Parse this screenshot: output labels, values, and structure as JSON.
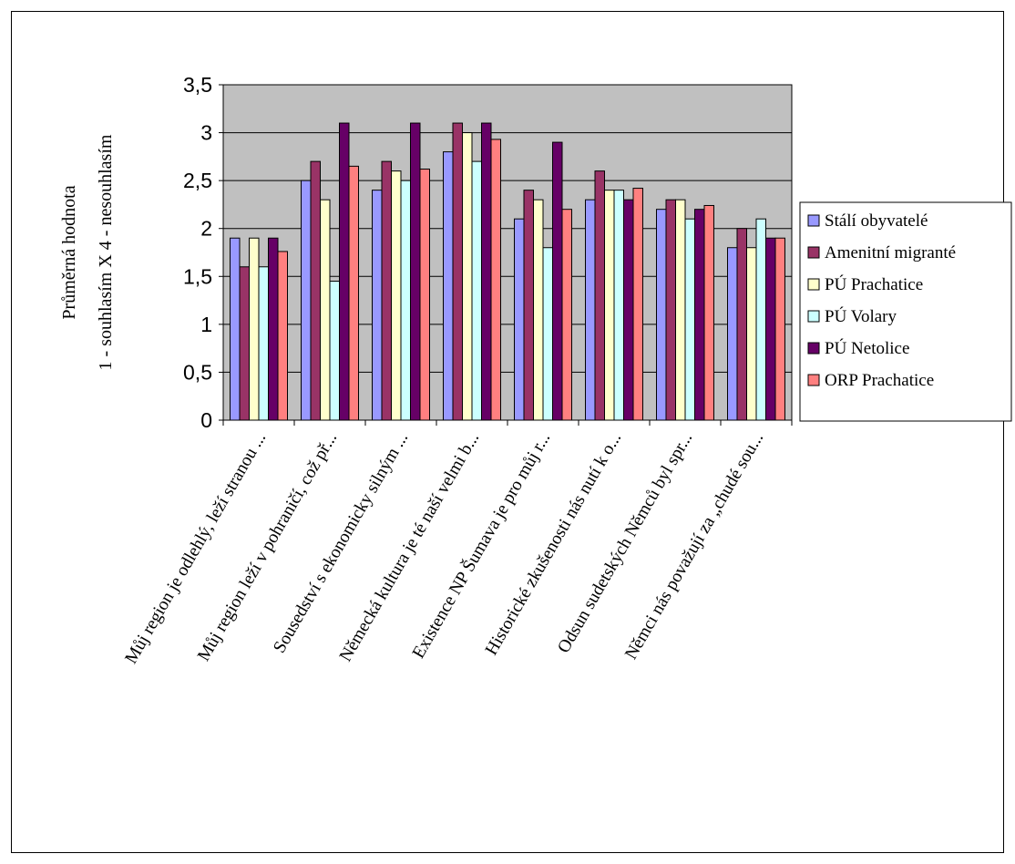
{
  "chart_data": {
    "type": "bar",
    "ylabel_line1": "Průměrná hodnota",
    "ylabel_line2": "1 - souhlasím X 4 - nesouhlasím",
    "ylim": [
      0,
      3.5
    ],
    "y_ticks": [
      "0",
      "0,5",
      "1",
      "1,5",
      "2",
      "2,5",
      "3",
      "3,5"
    ],
    "y_tick_values": [
      0,
      0.5,
      1,
      1.5,
      2,
      2.5,
      3,
      3.5
    ],
    "grid": true,
    "legend_position": "right",
    "plot_background": "#c0c0c0",
    "categories": [
      "Můj region je odlehlý, leží stranou ...",
      "Můj region leží v pohraničí, což př...",
      "Sousedství s ekonomicky silným ...",
      "Německá kultura je té naší velmi b...",
      "Existence NP Šumava je pro můj r...",
      "Historické zkušenosti nás nutí k o...",
      "Odsun sudetských Němců byl spr...",
      "Němci nás považují za „chudé sou..."
    ],
    "series": [
      {
        "name": "Stálí obyvatelé",
        "color": "#9999ff",
        "values": [
          1.9,
          2.5,
          2.4,
          2.8,
          2.1,
          2.3,
          2.2,
          1.8
        ]
      },
      {
        "name": "Amenitní migranté",
        "color": "#993366",
        "values": [
          1.6,
          2.7,
          2.7,
          3.1,
          2.4,
          2.6,
          2.3,
          2.0
        ]
      },
      {
        "name": "PÚ Prachatice",
        "color": "#ffffcc",
        "values": [
          1.9,
          2.3,
          2.6,
          3.0,
          2.3,
          2.4,
          2.3,
          1.8
        ]
      },
      {
        "name": "PÚ Volary",
        "color": "#ccffff",
        "values": [
          1.6,
          1.45,
          2.5,
          2.7,
          1.8,
          2.4,
          2.1,
          2.1
        ]
      },
      {
        "name": "PÚ Netolice",
        "color": "#660066",
        "values": [
          1.9,
          3.1,
          3.1,
          3.1,
          2.9,
          2.3,
          2.2,
          1.9
        ]
      },
      {
        "name": "ORP Prachatice",
        "color": "#ff8080",
        "values": [
          1.76,
          2.65,
          2.62,
          2.93,
          2.2,
          2.42,
          2.24,
          1.9
        ]
      }
    ]
  }
}
